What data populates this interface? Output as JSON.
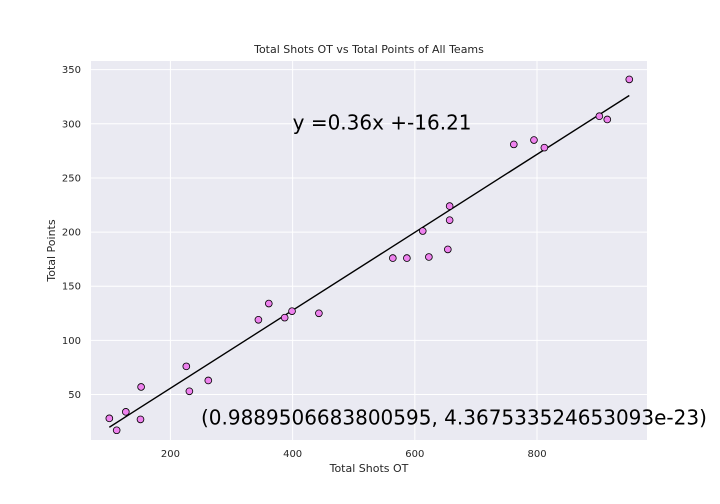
{
  "chart_data": {
    "type": "scatter",
    "title": "Total Shots OT vs Total Points of All Teams",
    "xlabel": "Total Shots OT",
    "ylabel": "Total Points",
    "xlim": [
      70,
      980
    ],
    "ylim": [
      8,
      358
    ],
    "xticks": [
      200,
      400,
      600,
      800
    ],
    "yticks": [
      50,
      100,
      150,
      200,
      250,
      300,
      350
    ],
    "grid": true,
    "points": [
      {
        "x": 100,
        "y": 28
      },
      {
        "x": 112,
        "y": 17
      },
      {
        "x": 127,
        "y": 34
      },
      {
        "x": 151,
        "y": 27
      },
      {
        "x": 152,
        "y": 57
      },
      {
        "x": 226,
        "y": 76
      },
      {
        "x": 231,
        "y": 53
      },
      {
        "x": 262,
        "y": 63
      },
      {
        "x": 344,
        "y": 119
      },
      {
        "x": 361,
        "y": 134
      },
      {
        "x": 387,
        "y": 121
      },
      {
        "x": 399,
        "y": 127
      },
      {
        "x": 443,
        "y": 125
      },
      {
        "x": 564,
        "y": 176
      },
      {
        "x": 587,
        "y": 176
      },
      {
        "x": 613,
        "y": 201
      },
      {
        "x": 623,
        "y": 177
      },
      {
        "x": 654,
        "y": 184
      },
      {
        "x": 657,
        "y": 211
      },
      {
        "x": 657,
        "y": 224
      },
      {
        "x": 762,
        "y": 281
      },
      {
        "x": 795,
        "y": 285
      },
      {
        "x": 812,
        "y": 278
      },
      {
        "x": 902,
        "y": 307
      },
      {
        "x": 915,
        "y": 304
      },
      {
        "x": 951,
        "y": 341
      }
    ],
    "fit_line": {
      "slope": 0.36,
      "intercept": -16.21,
      "x_range": [
        100,
        951
      ]
    },
    "annotations": [
      {
        "text": "y =0.36x +-16.21",
        "x": 400,
        "y": 301
      },
      {
        "text": "(0.9889506683800595, 4.367533524653093e-23)",
        "x": 250,
        "y": 29
      }
    ],
    "colors": {
      "background": "#eaeaf2",
      "grid": "#ffffff",
      "marker_fill": "#ee82ee",
      "marker_edge": "#000000",
      "line": "#000000"
    }
  }
}
